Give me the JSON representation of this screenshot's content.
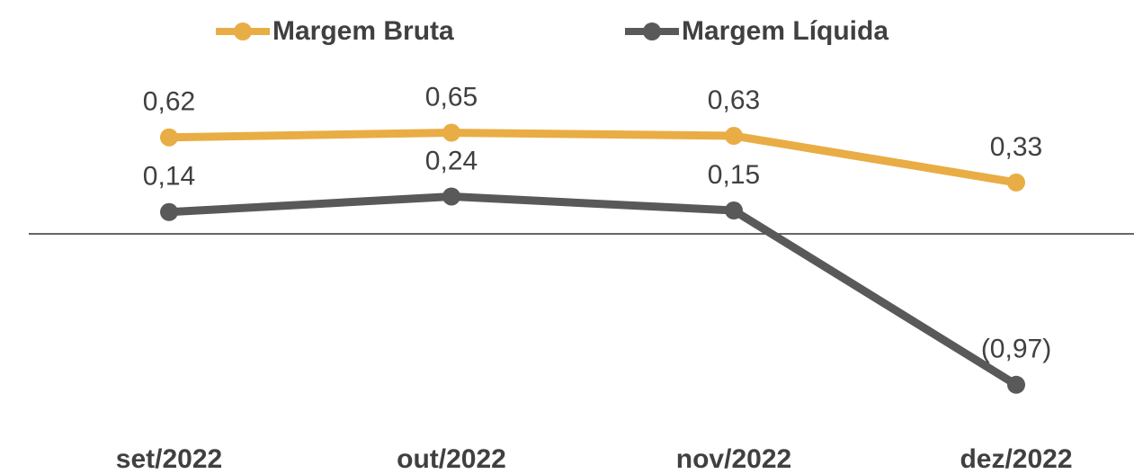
{
  "chart_data": {
    "type": "line",
    "categories": [
      "set/2022",
      "out/2022",
      "nov/2022",
      "dez/2022"
    ],
    "series": [
      {
        "name": "Margem Bruta",
        "color": "#e9ad45",
        "values": [
          0.62,
          0.65,
          0.63,
          0.33
        ],
        "value_labels": [
          "0,62",
          "0,65",
          "0,63",
          "0,33"
        ]
      },
      {
        "name": "Margem Líquida",
        "color": "#595959",
        "values": [
          0.14,
          0.24,
          0.15,
          -0.97
        ],
        "value_labels": [
          "0,14",
          "0,24",
          "0,15",
          "(0,97)"
        ]
      }
    ],
    "ylim": [
      -1,
      1
    ],
    "legend": "top"
  }
}
